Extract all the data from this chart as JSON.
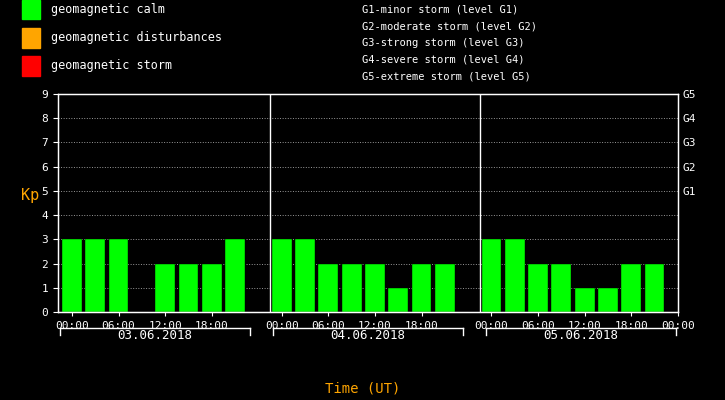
{
  "background_color": "#000000",
  "bar_color_calm": "#00ff00",
  "bar_color_disturb": "#ffa500",
  "bar_color_storm": "#ff0000",
  "text_color": "#ffffff",
  "kp_label_color": "#ffa500",
  "xlabel_color": "#ffa500",
  "ylabel": "Kp",
  "xlabel": "Time (UT)",
  "days": [
    "03.06.2018",
    "04.06.2018",
    "05.06.2018"
  ],
  "kp_values": [
    [
      3,
      3,
      3,
      0,
      2,
      2,
      2,
      3
    ],
    [
      3,
      3,
      2,
      2,
      2,
      1,
      2,
      2
    ],
    [
      3,
      3,
      2,
      2,
      1,
      1,
      2,
      2
    ]
  ],
  "ylim": [
    0,
    9
  ],
  "yticks": [
    0,
    1,
    2,
    3,
    4,
    5,
    6,
    7,
    8,
    9
  ],
  "right_labels": [
    [
      5,
      "G1"
    ],
    [
      6,
      "G2"
    ],
    [
      7,
      "G3"
    ],
    [
      8,
      "G4"
    ],
    [
      9,
      "G5"
    ]
  ],
  "legend_items": [
    {
      "color": "#00ff00",
      "label": "geomagnetic calm"
    },
    {
      "color": "#ffa500",
      "label": "geomagnetic disturbances"
    },
    {
      "color": "#ff0000",
      "label": "geomagnetic storm"
    }
  ],
  "storm_levels": [
    "G1-minor storm (level G1)",
    "G2-moderate storm (level G2)",
    "G3-strong storm (level G3)",
    "G4-severe storm (level G4)",
    "G5-extreme storm (level G5)"
  ],
  "hour_labels": [
    "00:00",
    "06:00",
    "12:00",
    "18:00"
  ],
  "legend_fontsize": 8.5,
  "storm_fontsize": 7.5,
  "tick_fontsize": 8,
  "ylabel_fontsize": 11,
  "day_label_fontsize": 9,
  "xlabel_fontsize": 10
}
